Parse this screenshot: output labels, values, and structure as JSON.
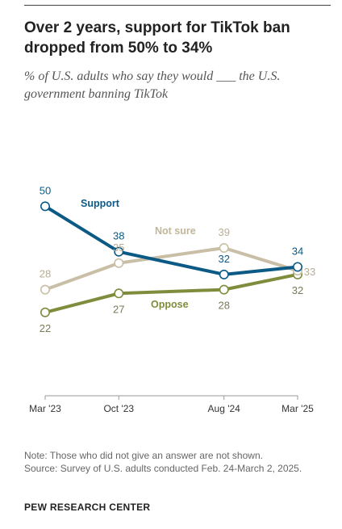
{
  "title": "Over 2 years, support for TikTok ban dropped from 50% to 34%",
  "subtitle": "% of U.S. adults who say they would ___ the U.S. government banning TikTok",
  "note": "Note: Those who did not give an answer are not shown.",
  "source": "Source: Survey of U.S. adults conducted Feb. 24-March 2, 2025.",
  "brand": "PEW RESEARCH CENTER",
  "chart_data": {
    "type": "line",
    "x": [
      "Mar '23",
      "Oct '23",
      "Aug '24",
      "Mar '25"
    ],
    "x_months": [
      0,
      7,
      17,
      24
    ],
    "ylim": [
      0,
      52
    ],
    "grid": false,
    "series": [
      {
        "name": "Support",
        "values": [
          50,
          38,
          32,
          34
        ],
        "color": "#0b5a86"
      },
      {
        "name": "Not sure",
        "values": [
          28,
          35,
          39,
          33
        ],
        "color": "#c9bea6"
      },
      {
        "name": "Oppose",
        "values": [
          22,
          27,
          28,
          32
        ],
        "color": "#7f8c3c"
      }
    ]
  }
}
